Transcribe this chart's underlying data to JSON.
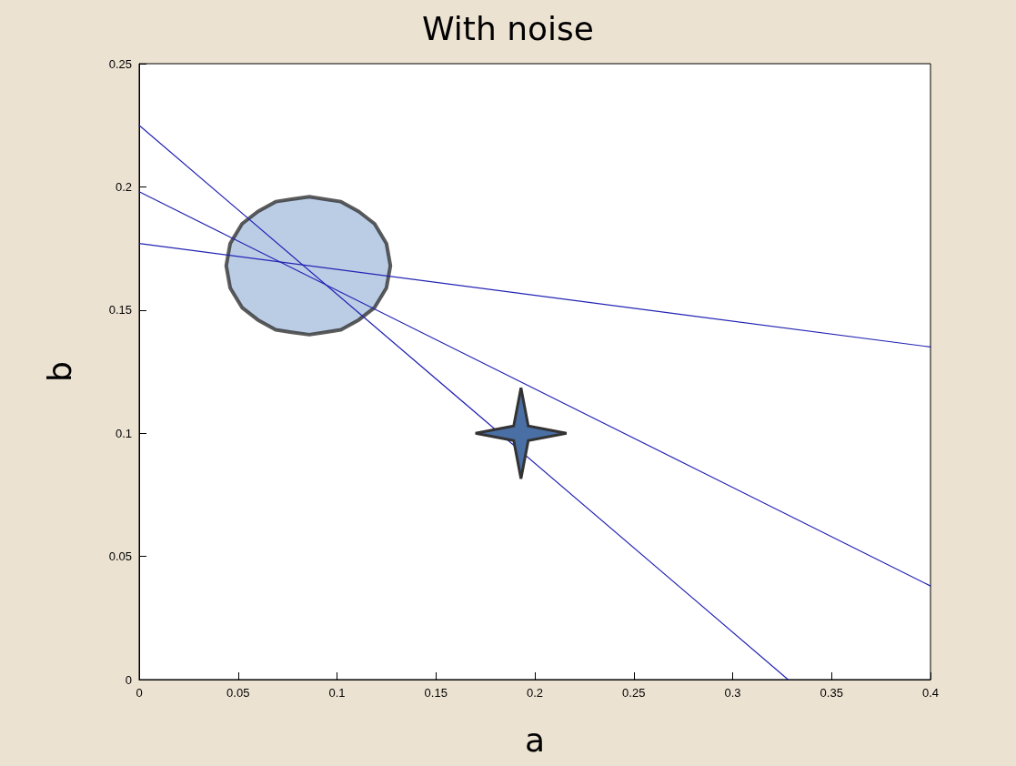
{
  "chart_data": {
    "type": "line",
    "title": "With noise",
    "xlabel": "a",
    "ylabel": "b",
    "xlim": [
      0,
      0.4
    ],
    "xticks": [
      0,
      0.05,
      0.1,
      0.15,
      0.2,
      0.25,
      0.3,
      0.35,
      0.4
    ],
    "ylim": [
      0,
      0.25
    ],
    "yticks": [
      0,
      0.05,
      0.1,
      0.15,
      0.2,
      0.25
    ],
    "grid": false,
    "marker": "none",
    "line_style": "solid",
    "series": [
      {
        "color": "#2323b4",
        "x": [
          0,
          0.328
        ],
        "values": [
          0.225,
          0
        ]
      },
      {
        "color": "#2323b4",
        "x": [
          0,
          0.4
        ],
        "values": [
          0.198,
          0.038
        ]
      },
      {
        "color": "#2323b4",
        "x": [
          0,
          0.4
        ],
        "values": [
          0.177,
          0.135
        ]
      },
      {
        "type": "area",
        "color": "#a9c0de",
        "x": [
          0.044,
          0.046,
          0.052,
          0.06,
          0.069,
          0.077,
          0.086,
          0.094,
          0.102,
          0.111,
          0.119,
          0.125,
          0.127,
          0.125,
          0.119,
          0.111,
          0.102,
          0.094,
          0.086,
          0.077,
          0.069,
          0.06,
          0.052,
          0.046,
          0.044
        ],
        "values": [
          0.168,
          0.177,
          0.185,
          0.19,
          0.194,
          0.195,
          0.196,
          0.195,
          0.194,
          0.19,
          0.185,
          0.177,
          0.168,
          0.159,
          0.151,
          0.146,
          0.142,
          0.141,
          0.14,
          0.141,
          0.142,
          0.146,
          0.151,
          0.159,
          0.168
        ]
      },
      {
        "type": "scatter",
        "marker": "star",
        "color": "#4a6fa5",
        "x": [
          0.193
        ],
        "values": [
          0.1
        ]
      }
    ]
  }
}
